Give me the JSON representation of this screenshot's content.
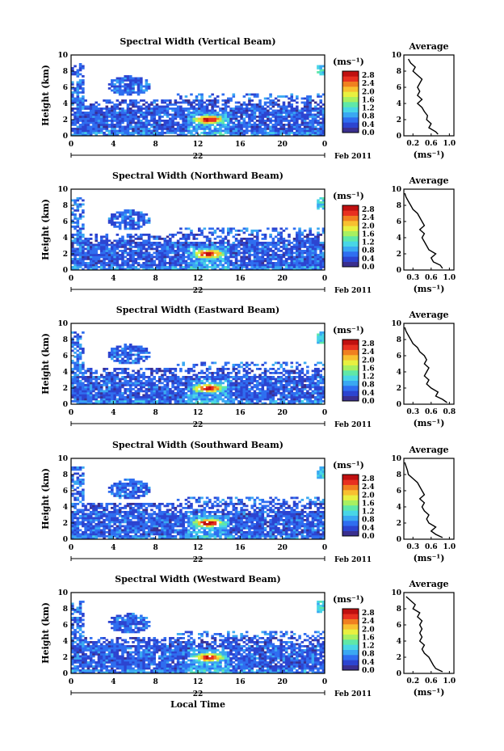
{
  "chart_data": {
    "type": "heatmap",
    "shared": {
      "xlabel": "Local Time",
      "ylabel": "Height (km)",
      "x_ticks": [
        "0",
        "4",
        "8",
        "12",
        "16",
        "20",
        "0"
      ],
      "xlim": [
        0,
        24
      ],
      "y_ticks": [
        "0",
        "2",
        "4",
        "6",
        "8",
        "10"
      ],
      "ylim": [
        0,
        10
      ],
      "date_day": "22",
      "date_month": "Feb 2011",
      "colorbar_unit": "(ms⁻¹)",
      "colorbar_ticks": [
        "0.0",
        "0.4",
        "0.8",
        "1.2",
        "1.6",
        "2.0",
        "2.4",
        "2.8"
      ],
      "colorbar_range": [
        0,
        3.0
      ],
      "profile_title": "Average",
      "profile_xlabel": "(ms⁻¹)",
      "colormap": [
        "#3a2f8f",
        "#2c44d0",
        "#2f6ef0",
        "#3aa8f2",
        "#48d6e6",
        "#5fe8a8",
        "#a8f060",
        "#e8f040",
        "#f8c030",
        "#f08020",
        "#e83020",
        "#c01010"
      ]
    },
    "panels": [
      {
        "title": "Spectral Width (Vertical Beam)",
        "profile_x_ticks": [
          "0.2",
          "0.6",
          "1.0"
        ],
        "profile_xlim": [
          0.0,
          1.1
        ],
        "profile": [
          [
            0.75,
            0.2
          ],
          [
            0.7,
            0.5
          ],
          [
            0.55,
            1.0
          ],
          [
            0.6,
            1.5
          ],
          [
            0.5,
            2.0
          ],
          [
            0.52,
            2.5
          ],
          [
            0.45,
            3.0
          ],
          [
            0.4,
            3.5
          ],
          [
            0.3,
            4.0
          ],
          [
            0.4,
            4.5
          ],
          [
            0.3,
            5.0
          ],
          [
            0.35,
            5.5
          ],
          [
            0.3,
            6.0
          ],
          [
            0.35,
            6.5
          ],
          [
            0.4,
            7.0
          ],
          [
            0.3,
            7.5
          ],
          [
            0.2,
            8.0
          ],
          [
            0.25,
            8.5
          ],
          [
            0.15,
            9.0
          ],
          [
            0.1,
            9.5
          ]
        ]
      },
      {
        "title": "Spectral Width (Northward Beam)",
        "profile_x_ticks": [
          "0.3",
          "0.6",
          "1.0"
        ],
        "profile_xlim": [
          0.0,
          1.1
        ],
        "profile": [
          [
            0.85,
            0.2
          ],
          [
            0.8,
            0.6
          ],
          [
            0.65,
            1.0
          ],
          [
            0.6,
            1.5
          ],
          [
            0.7,
            2.0
          ],
          [
            0.55,
            2.5
          ],
          [
            0.5,
            3.0
          ],
          [
            0.45,
            3.5
          ],
          [
            0.4,
            4.0
          ],
          [
            0.45,
            4.5
          ],
          [
            0.35,
            5.0
          ],
          [
            0.45,
            5.5
          ],
          [
            0.4,
            6.0
          ],
          [
            0.35,
            6.5
          ],
          [
            0.3,
            7.0
          ],
          [
            0.2,
            7.5
          ],
          [
            0.15,
            8.0
          ],
          [
            0.1,
            8.5
          ],
          [
            0.05,
            9.0
          ],
          [
            0.02,
            9.5
          ]
        ]
      },
      {
        "title": "Spectral Width (Eastward Beam)",
        "profile_x_ticks": [
          "0.3",
          "0.6",
          "0.8"
        ],
        "profile_xlim": [
          0.0,
          1.1
        ],
        "profile": [
          [
            0.95,
            0.2
          ],
          [
            0.85,
            0.6
          ],
          [
            0.7,
            1.0
          ],
          [
            0.75,
            1.5
          ],
          [
            0.6,
            2.0
          ],
          [
            0.5,
            2.5
          ],
          [
            0.55,
            3.0
          ],
          [
            0.45,
            3.5
          ],
          [
            0.5,
            4.0
          ],
          [
            0.55,
            4.5
          ],
          [
            0.45,
            5.0
          ],
          [
            0.5,
            5.5
          ],
          [
            0.45,
            6.0
          ],
          [
            0.35,
            6.5
          ],
          [
            0.3,
            7.0
          ],
          [
            0.2,
            7.5
          ],
          [
            0.15,
            8.0
          ],
          [
            0.1,
            8.5
          ],
          [
            0.05,
            9.0
          ],
          [
            0.02,
            9.5
          ]
        ]
      },
      {
        "title": "Spectral Width (Southward Beam)",
        "profile_x_ticks": [
          "0.3",
          "0.6",
          "1.0"
        ],
        "profile_xlim": [
          0.0,
          1.1
        ],
        "profile": [
          [
            0.85,
            0.2
          ],
          [
            0.7,
            0.6
          ],
          [
            0.6,
            1.0
          ],
          [
            0.7,
            1.5
          ],
          [
            0.55,
            2.0
          ],
          [
            0.5,
            2.5
          ],
          [
            0.55,
            3.0
          ],
          [
            0.45,
            3.5
          ],
          [
            0.4,
            4.0
          ],
          [
            0.45,
            4.5
          ],
          [
            0.35,
            5.0
          ],
          [
            0.45,
            5.5
          ],
          [
            0.4,
            6.0
          ],
          [
            0.35,
            6.5
          ],
          [
            0.3,
            7.0
          ],
          [
            0.2,
            7.5
          ],
          [
            0.1,
            8.0
          ],
          [
            0.08,
            8.5
          ],
          [
            0.05,
            9.0
          ],
          [
            0.02,
            9.5
          ]
        ]
      },
      {
        "title": "Spectral Width (Westward Beam)",
        "profile_x_ticks": [
          "0.2",
          "0.6",
          "1.0"
        ],
        "profile_xlim": [
          0.0,
          1.1
        ],
        "profile": [
          [
            0.85,
            0.2
          ],
          [
            0.7,
            0.6
          ],
          [
            0.65,
            1.0
          ],
          [
            0.6,
            1.5
          ],
          [
            0.55,
            2.0
          ],
          [
            0.45,
            2.5
          ],
          [
            0.4,
            3.0
          ],
          [
            0.45,
            3.5
          ],
          [
            0.35,
            4.0
          ],
          [
            0.4,
            4.5
          ],
          [
            0.35,
            5.0
          ],
          [
            0.4,
            5.5
          ],
          [
            0.35,
            6.0
          ],
          [
            0.4,
            6.5
          ],
          [
            0.3,
            7.0
          ],
          [
            0.35,
            7.5
          ],
          [
            0.2,
            8.0
          ],
          [
            0.25,
            8.5
          ],
          [
            0.15,
            9.0
          ],
          [
            0.05,
            9.5
          ]
        ]
      }
    ]
  }
}
